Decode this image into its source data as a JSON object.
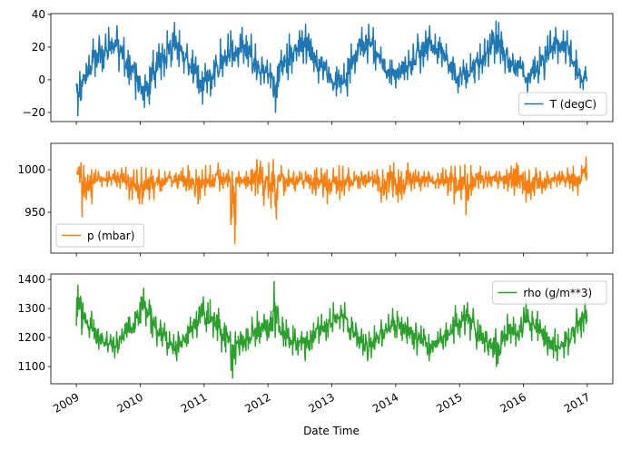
{
  "chart_data": [
    {
      "type": "line",
      "series": [
        {
          "name": "T (degC)",
          "color": "#1f77b4"
        }
      ],
      "legend": {
        "label": "T (degC)",
        "placement": "lower right"
      },
      "ylim": [
        -25.6,
        40.5
      ],
      "yticks": [
        -20,
        0,
        20,
        40
      ],
      "ytick_labels": [
        "−20",
        "0",
        "20",
        "40"
      ],
      "x_start_month": "2009-01",
      "x_resolution": "monthly range (min/max)",
      "monthly_min": [
        -22,
        -10,
        -3,
        2,
        5,
        7,
        9,
        10,
        5,
        -3,
        0,
        -12,
        -17,
        -15,
        -5,
        0,
        2,
        8,
        12,
        8,
        4,
        -2,
        -5,
        -15,
        -8,
        -10,
        -4,
        2,
        2,
        8,
        8,
        10,
        8,
        0,
        -3,
        -2,
        -5,
        -20,
        -1,
        0,
        4,
        6,
        10,
        10,
        5,
        -2,
        0,
        -5,
        -10,
        -8,
        -10,
        -2,
        4,
        8,
        10,
        10,
        6,
        2,
        -2,
        -3,
        -5,
        0,
        0,
        3,
        4,
        8,
        12,
        10,
        8,
        4,
        0,
        -8,
        -3,
        -5,
        -2,
        0,
        4,
        8,
        10,
        10,
        4,
        0,
        -2,
        2,
        -10,
        -2,
        -2,
        0,
        5,
        8,
        10,
        10,
        8,
        0,
        -5,
        -6
      ],
      "monthly_max": [
        5,
        10,
        15,
        25,
        27,
        28,
        32,
        33,
        26,
        18,
        15,
        10,
        3,
        8,
        18,
        22,
        22,
        30,
        35,
        30,
        22,
        18,
        14,
        5,
        10,
        12,
        15,
        25,
        28,
        30,
        28,
        32,
        28,
        22,
        14,
        12,
        10,
        8,
        18,
        22,
        28,
        30,
        30,
        34,
        25,
        18,
        14,
        12,
        8,
        6,
        10,
        22,
        22,
        32,
        34,
        32,
        24,
        20,
        12,
        12,
        10,
        14,
        18,
        22,
        28,
        30,
        33,
        28,
        26,
        22,
        14,
        10,
        12,
        10,
        16,
        22,
        25,
        28,
        36,
        35,
        24,
        18,
        16,
        14,
        10,
        12,
        14,
        20,
        27,
        30,
        32,
        30,
        30,
        18,
        12,
        8
      ]
    },
    {
      "type": "line",
      "series": [
        {
          "name": "p (mbar)",
          "color": "#ff7f0e"
        }
      ],
      "legend": {
        "label": "p (mbar)",
        "placement": "lower left"
      },
      "ylim": [
        902,
        1031
      ],
      "yticks": [
        950,
        1000
      ],
      "ytick_labels": [
        "950",
        "1000"
      ],
      "x_start_month": "2009-01",
      "x_resolution": "monthly range (min/max)",
      "monthly_min": [
        985,
        945,
        960,
        975,
        980,
        980,
        982,
        980,
        978,
        965,
        965,
        960,
        960,
        965,
        965,
        975,
        975,
        980,
        980,
        978,
        975,
        968,
        960,
        965,
        970,
        970,
        975,
        978,
        980,
        913,
        980,
        978,
        975,
        970,
        972,
        958,
        955,
        942,
        978,
        970,
        978,
        975,
        978,
        978,
        972,
        970,
        968,
        960,
        972,
        965,
        970,
        975,
        978,
        978,
        980,
        980,
        975,
        962,
        965,
        968,
        962,
        965,
        975,
        978,
        975,
        980,
        980,
        978,
        978,
        970,
        975,
        960,
        965,
        947,
        970,
        978,
        978,
        980,
        980,
        978,
        978,
        975,
        970,
        972,
        962,
        965,
        970,
        972,
        976,
        978,
        980,
        980,
        978,
        975,
        970,
        980
      ],
      "monthly_max": [
        1008,
        1005,
        1000,
        1000,
        998,
        998,
        998,
        1000,
        1002,
        1003,
        1000,
        1000,
        1003,
        1002,
        1000,
        1000,
        998,
        998,
        996,
        998,
        1002,
        1005,
        1000,
        1000,
        1005,
        1005,
        1008,
        1000,
        1000,
        998,
        998,
        998,
        1000,
        1012,
        1010,
        1003,
        1008,
        1012,
        1005,
        1000,
        998,
        998,
        996,
        998,
        1000,
        1002,
        1002,
        1000,
        1002,
        1005,
        1004,
        1002,
        998,
        998,
        998,
        998,
        1000,
        1000,
        1005,
        1008,
        1000,
        998,
        1008,
        1000,
        998,
        998,
        998,
        996,
        1002,
        1000,
        1004,
        1004,
        1004,
        1006,
        1005,
        1004,
        998,
        998,
        998,
        998,
        1000,
        1004,
        1008,
        1005,
        998,
        1000,
        1002,
        998,
        998,
        996,
        998,
        998,
        1002,
        1004,
        1005,
        1015
      ]
    },
    {
      "type": "line",
      "series": [
        {
          "name": "rho (g/m**3)",
          "color": "#2ca02c"
        }
      ],
      "legend": {
        "label": "rho (g/m**3)",
        "placement": "upper right"
      },
      "ylim": [
        1040.6,
        1418.75
      ],
      "yticks": [
        1100,
        1200,
        1300,
        1400
      ],
      "ytick_labels": [
        "1100",
        "1200",
        "1300",
        "1400"
      ],
      "xlabel": "Date Time",
      "x_start_month": "2009-01",
      "x_resolution": "monthly range (min/max)",
      "monthly_min": [
        1240,
        1210,
        1200,
        1160,
        1160,
        1150,
        1150,
        1130,
        1160,
        1180,
        1200,
        1230,
        1250,
        1240,
        1200,
        1170,
        1170,
        1140,
        1120,
        1150,
        1170,
        1180,
        1200,
        1250,
        1220,
        1200,
        1190,
        1150,
        1150,
        1060,
        1140,
        1130,
        1160,
        1170,
        1180,
        1190,
        1200,
        1200,
        1170,
        1170,
        1140,
        1140,
        1140,
        1120,
        1160,
        1180,
        1190,
        1200,
        1220,
        1230,
        1220,
        1170,
        1170,
        1140,
        1120,
        1130,
        1160,
        1170,
        1200,
        1200,
        1200,
        1190,
        1180,
        1160,
        1140,
        1140,
        1120,
        1150,
        1160,
        1170,
        1180,
        1210,
        1200,
        1210,
        1190,
        1160,
        1150,
        1140,
        1100,
        1110,
        1170,
        1180,
        1170,
        1170,
        1210,
        1190,
        1190,
        1170,
        1140,
        1130,
        1120,
        1130,
        1140,
        1180,
        1200,
        1220
      ],
      "monthly_max": [
        1380,
        1320,
        1290,
        1260,
        1230,
        1220,
        1210,
        1220,
        1230,
        1270,
        1270,
        1320,
        1370,
        1330,
        1300,
        1260,
        1250,
        1220,
        1210,
        1220,
        1240,
        1270,
        1290,
        1340,
        1320,
        1330,
        1300,
        1250,
        1240,
        1220,
        1220,
        1230,
        1230,
        1270,
        1290,
        1280,
        1290,
        1393,
        1270,
        1260,
        1240,
        1230,
        1220,
        1220,
        1250,
        1270,
        1280,
        1300,
        1320,
        1310,
        1320,
        1270,
        1250,
        1230,
        1210,
        1220,
        1240,
        1260,
        1280,
        1300,
        1290,
        1270,
        1270,
        1250,
        1240,
        1230,
        1210,
        1220,
        1230,
        1250,
        1270,
        1310,
        1310,
        1320,
        1300,
        1260,
        1240,
        1220,
        1230,
        1220,
        1240,
        1280,
        1270,
        1270,
        1330,
        1290,
        1290,
        1260,
        1240,
        1230,
        1210,
        1220,
        1230,
        1260,
        1300,
        1330
      ]
    }
  ],
  "x_axis": {
    "label": "Date Time",
    "ticks": [
      2009,
      2010,
      2011,
      2012,
      2013,
      2014,
      2015,
      2016,
      2017
    ],
    "tick_labels": [
      "2009",
      "2010",
      "2011",
      "2012",
      "2013",
      "2014",
      "2015",
      "2016",
      "2017"
    ],
    "xlim": [
      2008.6,
      2017.4
    ]
  }
}
